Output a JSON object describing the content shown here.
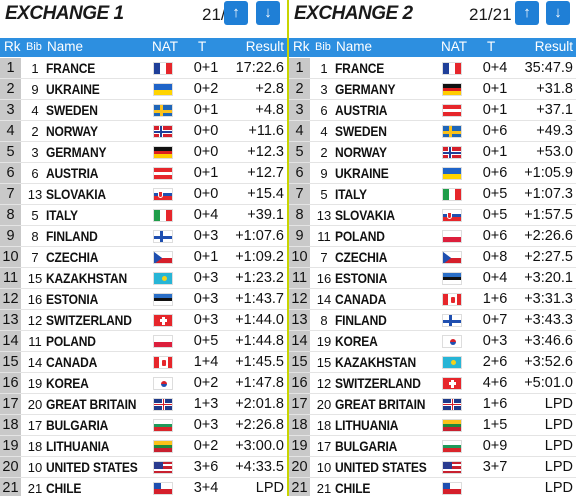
{
  "header": {
    "rk": "Rk",
    "bib": "Bib",
    "name": "Name",
    "nat": "NAT",
    "t": "T",
    "result": "Result"
  },
  "colors": {
    "header_bg": "#2d8fe0",
    "button_bg": "#1f7fd6",
    "divider": "#c8d400",
    "rank_bg": "#c9c9c9"
  },
  "icons": {
    "up": "arrow-up-icon",
    "down": "arrow-down-icon"
  },
  "panels": [
    {
      "title": "EXCHANGE 1",
      "counter": "21/21",
      "rows": [
        {
          "rk": "1",
          "bib": "1",
          "name": "FRANCE",
          "nat": "FRA",
          "t": "0+1",
          "result": "17:22.6"
        },
        {
          "rk": "2",
          "bib": "9",
          "name": "UKRAINE",
          "nat": "UKR",
          "t": "0+2",
          "result": "+2.8"
        },
        {
          "rk": "3",
          "bib": "4",
          "name": "SWEDEN",
          "nat": "SWE",
          "t": "0+1",
          "result": "+4.8"
        },
        {
          "rk": "4",
          "bib": "2",
          "name": "NORWAY",
          "nat": "NOR",
          "t": "0+0",
          "result": "+11.6"
        },
        {
          "rk": "5",
          "bib": "3",
          "name": "GERMANY",
          "nat": "GER",
          "t": "0+0",
          "result": "+12.3"
        },
        {
          "rk": "6",
          "bib": "6",
          "name": "AUSTRIA",
          "nat": "AUT",
          "t": "0+1",
          "result": "+12.7"
        },
        {
          "rk": "7",
          "bib": "13",
          "name": "SLOVAKIA",
          "nat": "SVK",
          "t": "0+0",
          "result": "+15.4"
        },
        {
          "rk": "8",
          "bib": "5",
          "name": "ITALY",
          "nat": "ITA",
          "t": "0+4",
          "result": "+39.1"
        },
        {
          "rk": "9",
          "bib": "8",
          "name": "FINLAND",
          "nat": "FIN",
          "t": "0+3",
          "result": "+1:07.6"
        },
        {
          "rk": "10",
          "bib": "7",
          "name": "CZECHIA",
          "nat": "CZE",
          "t": "0+1",
          "result": "+1:09.2"
        },
        {
          "rk": "11",
          "bib": "15",
          "name": "KAZAKHSTAN",
          "nat": "KAZ",
          "t": "0+3",
          "result": "+1:23.2"
        },
        {
          "rk": "12",
          "bib": "16",
          "name": "ESTONIA",
          "nat": "EST",
          "t": "0+3",
          "result": "+1:43.7"
        },
        {
          "rk": "13",
          "bib": "12",
          "name": "SWITZERLAND",
          "nat": "SUI",
          "t": "0+3",
          "result": "+1:44.0"
        },
        {
          "rk": "14",
          "bib": "11",
          "name": "POLAND",
          "nat": "POL",
          "t": "0+5",
          "result": "+1:44.8"
        },
        {
          "rk": "15",
          "bib": "14",
          "name": "CANADA",
          "nat": "CAN",
          "t": "1+4",
          "result": "+1:45.5"
        },
        {
          "rk": "16",
          "bib": "19",
          "name": "KOREA",
          "nat": "KOR",
          "t": "0+2",
          "result": "+1:47.8"
        },
        {
          "rk": "17",
          "bib": "20",
          "name": "GREAT BRITAIN",
          "nat": "GBR",
          "t": "1+3",
          "result": "+2:01.8"
        },
        {
          "rk": "18",
          "bib": "17",
          "name": "BULGARIA",
          "nat": "BUL",
          "t": "0+3",
          "result": "+2:26.8"
        },
        {
          "rk": "19",
          "bib": "18",
          "name": "LITHUANIA",
          "nat": "LTU",
          "t": "0+2",
          "result": "+3:00.0"
        },
        {
          "rk": "20",
          "bib": "10",
          "name": "UNITED STATES",
          "nat": "USA",
          "t": "3+6",
          "result": "+4:33.5"
        },
        {
          "rk": "21",
          "bib": "21",
          "name": "CHILE",
          "nat": "CHI",
          "t": "3+4",
          "result": "LPD"
        }
      ]
    },
    {
      "title": "EXCHANGE 2",
      "counter": "21/21",
      "rows": [
        {
          "rk": "1",
          "bib": "1",
          "name": "FRANCE",
          "nat": "FRA",
          "t": "0+4",
          "result": "35:47.9"
        },
        {
          "rk": "2",
          "bib": "3",
          "name": "GERMANY",
          "nat": "GER",
          "t": "0+1",
          "result": "+31.8"
        },
        {
          "rk": "3",
          "bib": "6",
          "name": "AUSTRIA",
          "nat": "AUT",
          "t": "0+1",
          "result": "+37.1"
        },
        {
          "rk": "4",
          "bib": "4",
          "name": "SWEDEN",
          "nat": "SWE",
          "t": "0+6",
          "result": "+49.3"
        },
        {
          "rk": "5",
          "bib": "2",
          "name": "NORWAY",
          "nat": "NOR",
          "t": "0+1",
          "result": "+53.0"
        },
        {
          "rk": "6",
          "bib": "9",
          "name": "UKRAINE",
          "nat": "UKR",
          "t": "0+6",
          "result": "+1:05.9"
        },
        {
          "rk": "7",
          "bib": "5",
          "name": "ITALY",
          "nat": "ITA",
          "t": "0+5",
          "result": "+1:07.3"
        },
        {
          "rk": "8",
          "bib": "13",
          "name": "SLOVAKIA",
          "nat": "SVK",
          "t": "0+5",
          "result": "+1:57.5"
        },
        {
          "rk": "9",
          "bib": "11",
          "name": "POLAND",
          "nat": "POL",
          "t": "0+6",
          "result": "+2:26.6"
        },
        {
          "rk": "10",
          "bib": "7",
          "name": "CZECHIA",
          "nat": "CZE",
          "t": "0+8",
          "result": "+2:27.5"
        },
        {
          "rk": "11",
          "bib": "16",
          "name": "ESTONIA",
          "nat": "EST",
          "t": "0+4",
          "result": "+3:20.1"
        },
        {
          "rk": "12",
          "bib": "14",
          "name": "CANADA",
          "nat": "CAN",
          "t": "1+6",
          "result": "+3:31.3"
        },
        {
          "rk": "13",
          "bib": "8",
          "name": "FINLAND",
          "nat": "FIN",
          "t": "0+7",
          "result": "+3:43.3"
        },
        {
          "rk": "14",
          "bib": "19",
          "name": "KOREA",
          "nat": "KOR",
          "t": "0+3",
          "result": "+3:46.6"
        },
        {
          "rk": "15",
          "bib": "15",
          "name": "KAZAKHSTAN",
          "nat": "KAZ",
          "t": "2+6",
          "result": "+3:52.6"
        },
        {
          "rk": "16",
          "bib": "12",
          "name": "SWITZERLAND",
          "nat": "SUI",
          "t": "4+6",
          "result": "+5:01.0"
        },
        {
          "rk": "17",
          "bib": "20",
          "name": "GREAT BRITAIN",
          "nat": "GBR",
          "t": "1+6",
          "result": "LPD"
        },
        {
          "rk": "18",
          "bib": "18",
          "name": "LITHUANIA",
          "nat": "LTU",
          "t": "1+5",
          "result": "LPD"
        },
        {
          "rk": "19",
          "bib": "17",
          "name": "BULGARIA",
          "nat": "BUL",
          "t": "0+9",
          "result": "LPD"
        },
        {
          "rk": "20",
          "bib": "10",
          "name": "UNITED STATES",
          "nat": "USA",
          "t": "3+7",
          "result": "LPD"
        },
        {
          "rk": "21",
          "bib": "21",
          "name": "CHILE",
          "nat": "CHI",
          "t": "",
          "result": "LPD"
        }
      ]
    }
  ]
}
